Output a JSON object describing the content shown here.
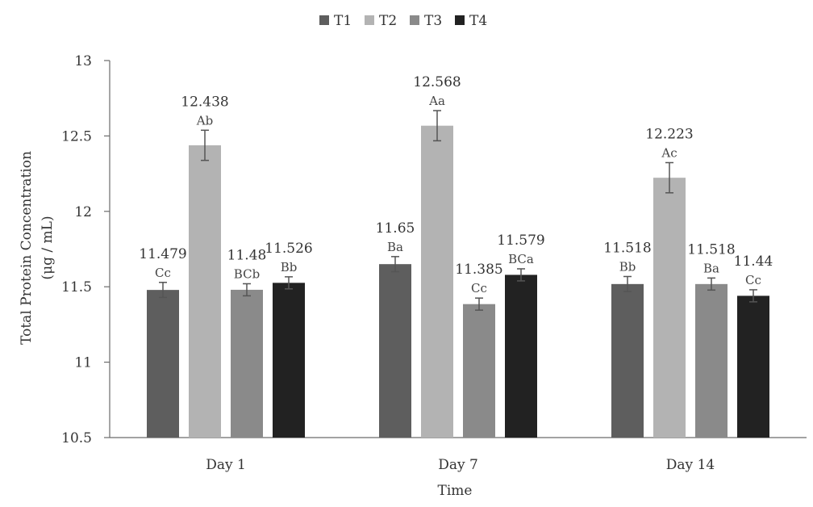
{
  "chart_data": {
    "type": "bar",
    "title": "",
    "xlabel": "Time",
    "ylabel_lines": [
      "Total Protein Concentration",
      "(μg / mL)"
    ],
    "ylim": [
      10.5,
      13
    ],
    "yticks": [
      10.5,
      11,
      11.5,
      12,
      12.5,
      13
    ],
    "ytick_labels": [
      "10.5",
      "11",
      "11.5",
      "12",
      "12.5",
      "13"
    ],
    "categories": [
      "Day 1",
      "Day 7",
      "Day 14"
    ],
    "legend_position": "top-center",
    "series": [
      {
        "name": "T1",
        "color": "#5e5e5e",
        "values": [
          11.479,
          11.65,
          11.518
        ],
        "value_labels": [
          "11.479",
          "11.65",
          "11.518"
        ],
        "letters": [
          "Cc",
          "Ba",
          "Bb"
        ],
        "errors": [
          0.05,
          0.05,
          0.05
        ]
      },
      {
        "name": "T2",
        "color": "#b3b3b3",
        "values": [
          12.438,
          12.568,
          12.223
        ],
        "value_labels": [
          "12.438",
          "12.568",
          "12.223"
        ],
        "letters": [
          "Ab",
          "Aa",
          "Ac"
        ],
        "errors": [
          0.1,
          0.1,
          0.1
        ]
      },
      {
        "name": "T3",
        "color": "#8a8a8a",
        "values": [
          11.48,
          11.385,
          11.518
        ],
        "value_labels": [
          "11.48",
          "11.385",
          "11.518"
        ],
        "letters": [
          "BCb",
          "Cc",
          "Ba"
        ],
        "errors": [
          0.04,
          0.04,
          0.04
        ]
      },
      {
        "name": "T4",
        "color": "#222222",
        "values": [
          11.526,
          11.579,
          11.44
        ],
        "value_labels": [
          "11.526",
          "11.579",
          "11.44"
        ],
        "letters": [
          "Bb",
          "BCa",
          "Cc"
        ],
        "errors": [
          0.04,
          0.04,
          0.04
        ]
      }
    ]
  }
}
